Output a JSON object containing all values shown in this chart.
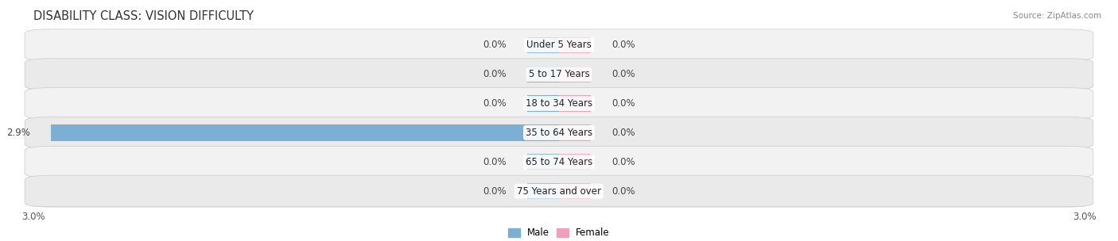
{
  "title": "DISABILITY CLASS: VISION DIFFICULTY",
  "source": "Source: ZipAtlas.com",
  "categories": [
    "Under 5 Years",
    "5 to 17 Years",
    "18 to 34 Years",
    "35 to 64 Years",
    "65 to 74 Years",
    "75 Years and over"
  ],
  "male_values": [
    0.0,
    0.0,
    0.0,
    2.9,
    0.0,
    0.0
  ],
  "female_values": [
    0.0,
    0.0,
    0.0,
    0.0,
    0.0,
    0.0
  ],
  "male_color": "#7bafd4",
  "female_color": "#f0a0b8",
  "row_bg_even": "#f2f2f2",
  "row_bg_odd": "#eaeaea",
  "row_border": "#d0d0d0",
  "x_min": -3.0,
  "x_max": 3.0,
  "stub_size": 0.18,
  "title_fontsize": 10.5,
  "value_fontsize": 8.5,
  "cat_fontsize": 8.5,
  "tick_fontsize": 8.5,
  "bar_height": 0.55
}
